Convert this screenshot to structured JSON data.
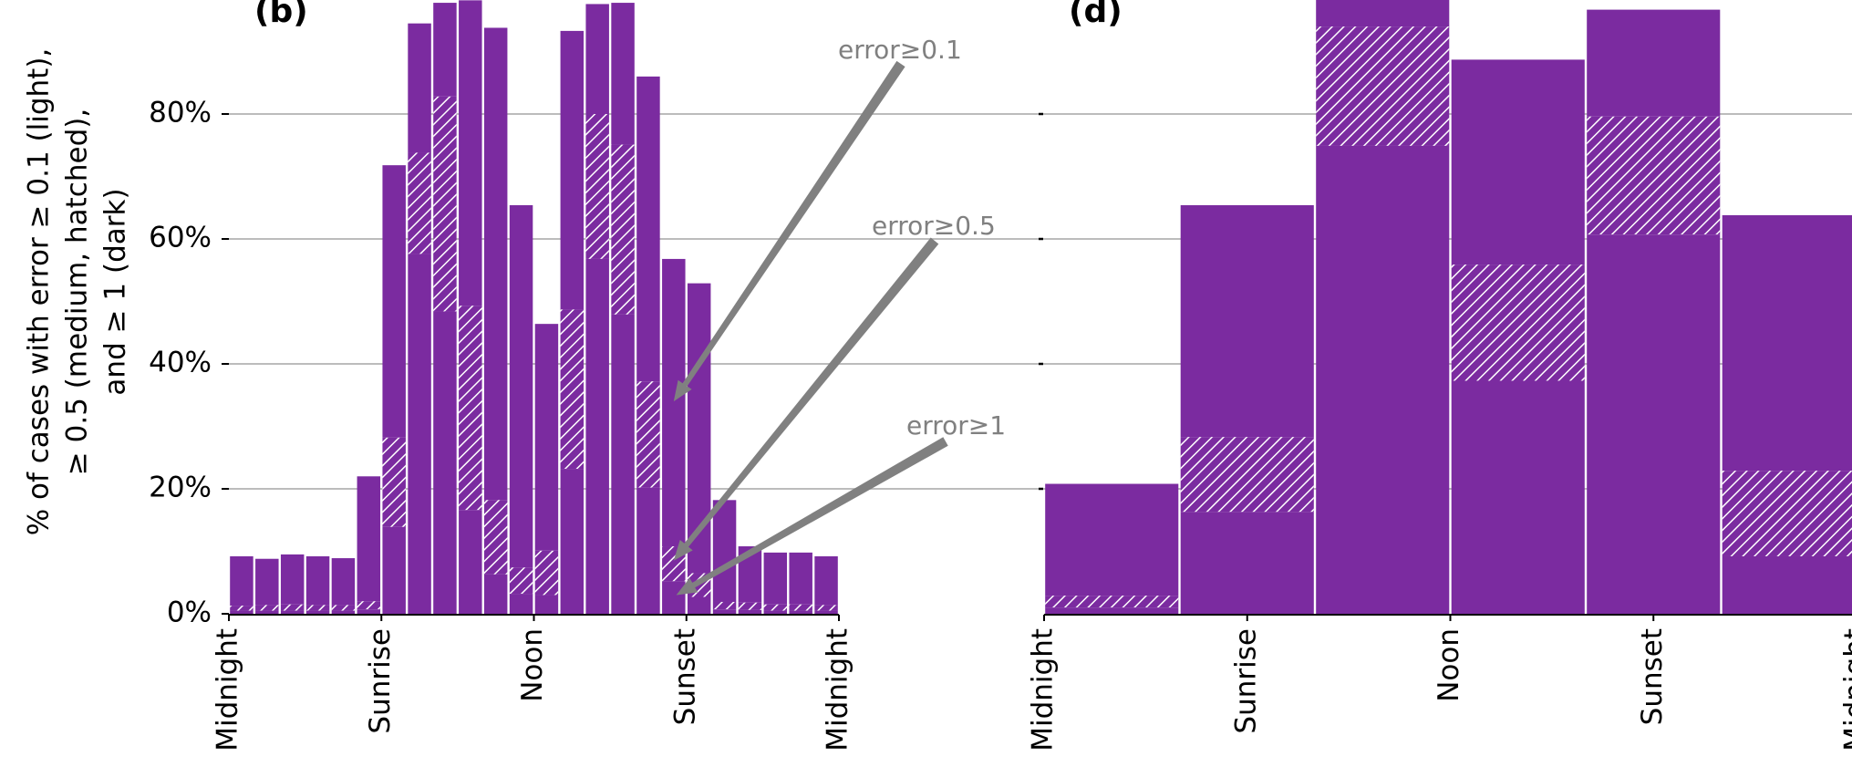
{
  "colors": {
    "bar": "#7b2ba0",
    "hatch_line": "#ffffff",
    "grid": "#b3b3b3",
    "annotation": "#808080",
    "axis": "#000000"
  },
  "ylabel_lines": [
    "% of cases with error ≥ 0.1 (light),",
    "≥ 0.5 (medium, hatched),",
    "and ≥ 1 (dark)"
  ],
  "chart_data": [
    {
      "type": "bar",
      "panel_label": "(b)",
      "stacked_levels": [
        "error≥0.1",
        "error≥0.5",
        "error≥1"
      ],
      "ylim": [
        0,
        100
      ],
      "yticks": [
        0,
        20,
        40,
        60,
        80
      ],
      "ytick_labels": [
        "0%",
        "20%",
        "40%",
        "60%",
        "80%"
      ],
      "grid": true,
      "xticks": [
        {
          "pos": 0,
          "label": "Midnight"
        },
        {
          "pos": 6,
          "label": "Sunrise"
        },
        {
          "pos": 12,
          "label": "Noon"
        },
        {
          "pos": 18,
          "label": "Sunset"
        },
        {
          "pos": 24,
          "label": "Midnight"
        }
      ],
      "bars": [
        {
          "x0": 0,
          "x1": 1,
          "light": 9.2,
          "medium": 1.3,
          "dark": 0.5
        },
        {
          "x0": 1,
          "x1": 2,
          "light": 8.8,
          "medium": 1.4,
          "dark": 0.5
        },
        {
          "x0": 2,
          "x1": 3,
          "light": 9.5,
          "medium": 1.5,
          "dark": 0.5
        },
        {
          "x0": 3,
          "x1": 4,
          "light": 9.2,
          "medium": 1.4,
          "dark": 0.5
        },
        {
          "x0": 4,
          "x1": 5,
          "light": 8.9,
          "medium": 1.4,
          "dark": 0.5
        },
        {
          "x0": 5,
          "x1": 6,
          "light": 22.0,
          "medium": 2.0,
          "dark": 0.7
        },
        {
          "x0": 6,
          "x1": 7,
          "light": 71.8,
          "medium": 28.2,
          "dark": 13.9
        },
        {
          "x0": 7,
          "x1": 8,
          "light": 94.5,
          "medium": 73.8,
          "dark": 57.6
        },
        {
          "x0": 8,
          "x1": 9,
          "light": 97.8,
          "medium": 82.8,
          "dark": 48.4
        },
        {
          "x0": 9,
          "x1": 10,
          "light": 98.2,
          "medium": 49.3,
          "dark": 16.6
        },
        {
          "x0": 10,
          "x1": 11,
          "light": 93.8,
          "medium": 18.2,
          "dark": 6.3
        },
        {
          "x0": 11,
          "x1": 12,
          "light": 65.4,
          "medium": 7.4,
          "dark": 3.2
        },
        {
          "x0": 12,
          "x1": 13,
          "light": 46.4,
          "medium": 10.1,
          "dark": 3.0
        },
        {
          "x0": 13,
          "x1": 14,
          "light": 93.3,
          "medium": 48.7,
          "dark": 23.2
        },
        {
          "x0": 14,
          "x1": 15,
          "light": 97.6,
          "medium": 80.0,
          "dark": 56.8
        },
        {
          "x0": 15,
          "x1": 16,
          "light": 97.8,
          "medium": 75.1,
          "dark": 47.9
        },
        {
          "x0": 16,
          "x1": 17,
          "light": 86.0,
          "medium": 37.2,
          "dark": 20.2
        },
        {
          "x0": 17,
          "x1": 18,
          "light": 56.8,
          "medium": 10.8,
          "dark": 5.2
        },
        {
          "x0": 18,
          "x1": 19,
          "light": 52.9,
          "medium": 6.5,
          "dark": 2.7
        },
        {
          "x0": 19,
          "x1": 20,
          "light": 18.2,
          "medium": 1.9,
          "dark": 0.7
        },
        {
          "x0": 20,
          "x1": 21,
          "light": 10.8,
          "medium": 1.8,
          "dark": 0.6
        },
        {
          "x0": 21,
          "x1": 22,
          "light": 9.8,
          "medium": 1.5,
          "dark": 0.5
        },
        {
          "x0": 22,
          "x1": 23,
          "light": 9.8,
          "medium": 1.5,
          "dark": 0.5
        },
        {
          "x0": 23,
          "x1": 24,
          "light": 9.2,
          "medium": 1.4,
          "dark": 0.5
        }
      ],
      "annotations": [
        {
          "text": "error≥0.1",
          "target_x": 17.5,
          "target_y": 34
        },
        {
          "text": "error≥0.5",
          "target_x": 17.5,
          "target_y": 8.5
        },
        {
          "text": "error≥1",
          "target_x": 17.6,
          "target_y": 3
        }
      ]
    },
    {
      "type": "bar",
      "panel_label": "(d)",
      "stacked_levels": [
        "error≥0.1",
        "error≥0.5",
        "error≥1"
      ],
      "ylim": [
        0,
        100
      ],
      "yticks": [
        0,
        20,
        40,
        60,
        80
      ],
      "grid": true,
      "xticks": [
        {
          "pos": 0,
          "label": "Midnight"
        },
        {
          "pos": 6,
          "label": "Sunrise"
        },
        {
          "pos": 12,
          "label": "Noon"
        },
        {
          "pos": 18,
          "label": "Sunset"
        },
        {
          "pos": 24,
          "label": "Midnight"
        }
      ],
      "bars": [
        {
          "x0": 0,
          "x1": 4,
          "light": 20.8,
          "medium": 2.9,
          "dark": 1.0
        },
        {
          "x0": 4,
          "x1": 8,
          "light": 65.4,
          "medium": 28.3,
          "dark": 16.3
        },
        {
          "x0": 8,
          "x1": 12,
          "light": 100,
          "medium": 94.0,
          "dark": 74.9
        },
        {
          "x0": 12,
          "x1": 16,
          "light": 88.7,
          "medium": 55.9,
          "dark": 37.3
        },
        {
          "x0": 16,
          "x1": 20,
          "light": 96.7,
          "medium": 79.6,
          "dark": 60.7
        },
        {
          "x0": 20,
          "x1": 24,
          "light": 63.8,
          "medium": 22.9,
          "dark": 9.2
        }
      ]
    }
  ]
}
